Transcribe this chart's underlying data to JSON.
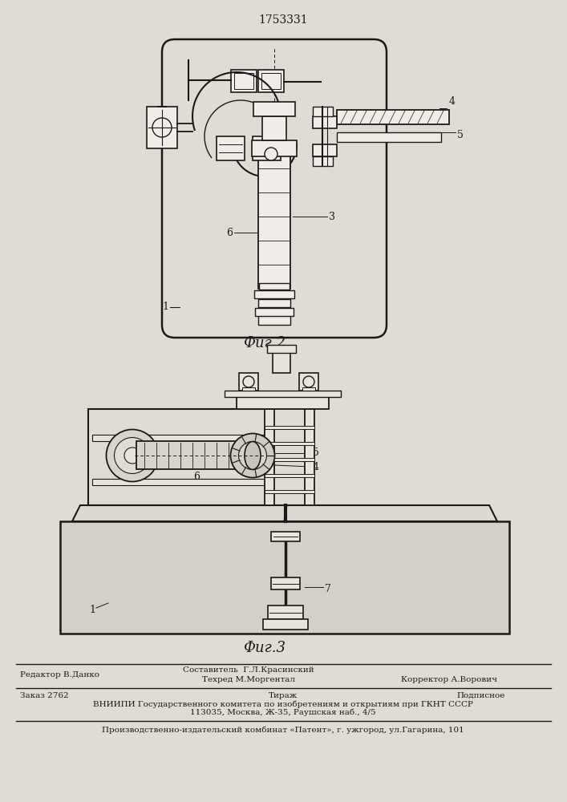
{
  "title_number": "1753331",
  "fig2_label": "Фиг.2",
  "fig3_label": "Фиг.3",
  "bg_color": "#c8c4bc",
  "paper_color": "#e0dcd4",
  "line_color": "#1a1a1a",
  "footer_line1_left": "Редактор В.Данко",
  "footer_line1_center1": "Составитель  Г.Л.Красинский",
  "footer_line1_center2": "Техред М.Моргентал",
  "footer_line1_right": "Корректор А.Ворович",
  "footer_line2_1": "Заказ 2762",
  "footer_line2_2": "Тираж",
  "footer_line2_3": "Подписное",
  "footer_line3": "ВНИИПИ Государственного комитета по изобретениям и открытиям при ГКНТ СССР",
  "footer_line4": "113035, Москва, Ж-35, Раушская наб., 4/5",
  "footer_line5": "Производственно-издательский комбинат «Патент», г. ужгород, ул.Гагарина, 101"
}
